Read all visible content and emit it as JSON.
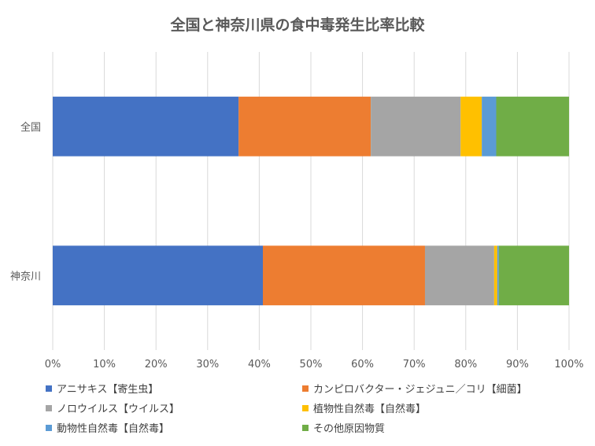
{
  "chart_data": {
    "type": "bar",
    "orientation": "horizontal",
    "stacked": "percent",
    "title": "全国と神奈川県の食中毒発生比率比較",
    "categories": [
      "全国",
      "神奈川"
    ],
    "x_ticks": [
      "0%",
      "10%",
      "20%",
      "30%",
      "40%",
      "50%",
      "60%",
      "70%",
      "80%",
      "90%",
      "100%"
    ],
    "xlim": [
      0,
      100
    ],
    "grid": true,
    "legend_position": "bottom",
    "series": [
      {
        "name": "アニサキス【寄生虫】",
        "color": "#4472C4",
        "values": [
          36.0,
          40.7
        ]
      },
      {
        "name": "カンピロバクター・ジェジュニ／コリ【細菌】",
        "color": "#ED7D31",
        "values": [
          25.6,
          31.4
        ]
      },
      {
        "name": "ノロウイルス【ウイルス】",
        "color": "#A5A5A5",
        "values": [
          17.4,
          13.4
        ]
      },
      {
        "name": "植物性自然毒【自然毒】",
        "color": "#FFC000",
        "values": [
          4.1,
          0.6
        ]
      },
      {
        "name": "動物性自然毒【自然毒】",
        "color": "#5B9BD5",
        "values": [
          2.8,
          0.3
        ]
      },
      {
        "name": "その他原因物質",
        "color": "#70AD47",
        "values": [
          14.1,
          13.6
        ]
      }
    ]
  }
}
